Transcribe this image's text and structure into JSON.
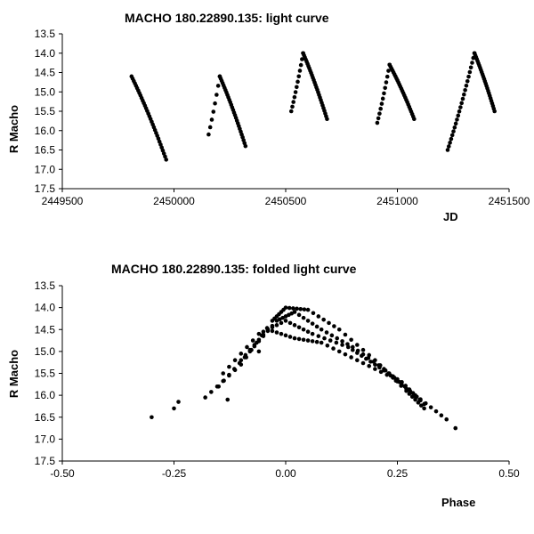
{
  "chart_data": [
    {
      "type": "scatter",
      "title": "MACHO 180.22890.135: light curve",
      "xlabel": "JD",
      "ylabel": "R Macho",
      "xlim": [
        2449500,
        2451500
      ],
      "ylim": [
        13.5,
        17.5
      ],
      "y_inverted": true,
      "grid": false,
      "x_ticks": [
        "2449500",
        "2450000",
        "2450500",
        "2451000",
        "2451500"
      ],
      "y_ticks": [
        "13.5",
        "14.0",
        "14.5",
        "15.0",
        "15.5",
        "16.0",
        "16.5",
        "17.0",
        "17.5"
      ],
      "marker_color": "#000000",
      "series": [
        {
          "segments": [
            {
              "x_start": 2449810,
              "x_end": 2449965,
              "y_start": 14.6,
              "y_end": 16.75,
              "n": 32
            },
            {
              "x_start": 2450205,
              "x_end": 2450320,
              "y_start": 14.6,
              "y_end": 16.4,
              "n": 28
            },
            {
              "x_start": 2450578,
              "x_end": 2450685,
              "y_start": 14.0,
              "y_end": 15.7,
              "n": 28
            },
            {
              "x_start": 2450965,
              "x_end": 2451075,
              "y_start": 14.3,
              "y_end": 15.7,
              "n": 26
            },
            {
              "x_start": 2451345,
              "x_end": 2451435,
              "y_start": 14.0,
              "y_end": 15.5,
              "n": 26
            }
          ],
          "rises": [
            {
              "x_start": 2450155,
              "x_end": 2450205,
              "y_start": 16.1,
              "y_end": 14.6,
              "n": 8
            },
            {
              "x_start": 2450525,
              "x_end": 2450578,
              "y_start": 15.5,
              "y_end": 14.0,
              "n": 12
            },
            {
              "x_start": 2450910,
              "x_end": 2450965,
              "y_start": 15.8,
              "y_end": 14.3,
              "n": 12
            },
            {
              "x_start": 2451225,
              "x_end": 2451345,
              "y_start": 16.5,
              "y_end": 14.0,
              "n": 24
            }
          ]
        }
      ]
    },
    {
      "type": "scatter",
      "title": "MACHO 180.22890.135: folded light curve",
      "xlabel": "Phase",
      "ylabel": "R Macho",
      "xlim": [
        -0.5,
        0.5
      ],
      "ylim": [
        13.5,
        17.5
      ],
      "y_inverted": true,
      "grid": false,
      "x_ticks": [
        "-0.50",
        "-0.25",
        "0.00",
        "0.25",
        "0.50"
      ],
      "y_ticks": [
        "13.5",
        "14.0",
        "14.5",
        "15.0",
        "15.5",
        "16.0",
        "16.5",
        "17.0",
        "17.5"
      ],
      "marker_color": "#000000",
      "series": [
        {
          "tracks": [
            {
              "x": [
                -0.18,
                -0.1,
                -0.03,
                0.0,
                0.05,
                0.12,
                0.2,
                0.27,
                0.31
              ],
              "y": [
                16.05,
                15.3,
                14.3,
                14.0,
                14.05,
                14.5,
                15.2,
                15.9,
                16.3
              ]
            },
            {
              "x": [
                -0.15,
                -0.08,
                -0.02,
                0.02,
                0.08,
                0.15,
                0.22,
                0.29,
                0.36
              ],
              "y": [
                15.8,
                15.0,
                14.3,
                14.1,
                14.5,
                14.9,
                15.4,
                16.0,
                16.55
              ]
            },
            {
              "x": [
                -0.14,
                -0.06,
                0.0,
                0.06,
                0.14,
                0.2,
                0.26,
                0.31
              ],
              "y": [
                15.5,
                14.6,
                14.3,
                14.6,
                14.9,
                15.3,
                15.7,
                16.2
              ]
            },
            {
              "x": [
                -0.1,
                -0.04,
                0.02,
                0.08,
                0.16,
                0.24,
                0.3
              ],
              "y": [
                15.2,
                14.5,
                14.7,
                14.8,
                15.2,
                15.6,
                16.1
              ]
            }
          ],
          "outliers": [
            {
              "x": -0.3,
              "y": 16.5
            },
            {
              "x": -0.25,
              "y": 16.3
            },
            {
              "x": -0.24,
              "y": 16.15
            },
            {
              "x": 0.38,
              "y": 16.75
            },
            {
              "x": -0.06,
              "y": 15.0
            },
            {
              "x": -0.13,
              "y": 16.1
            }
          ]
        }
      ]
    }
  ]
}
